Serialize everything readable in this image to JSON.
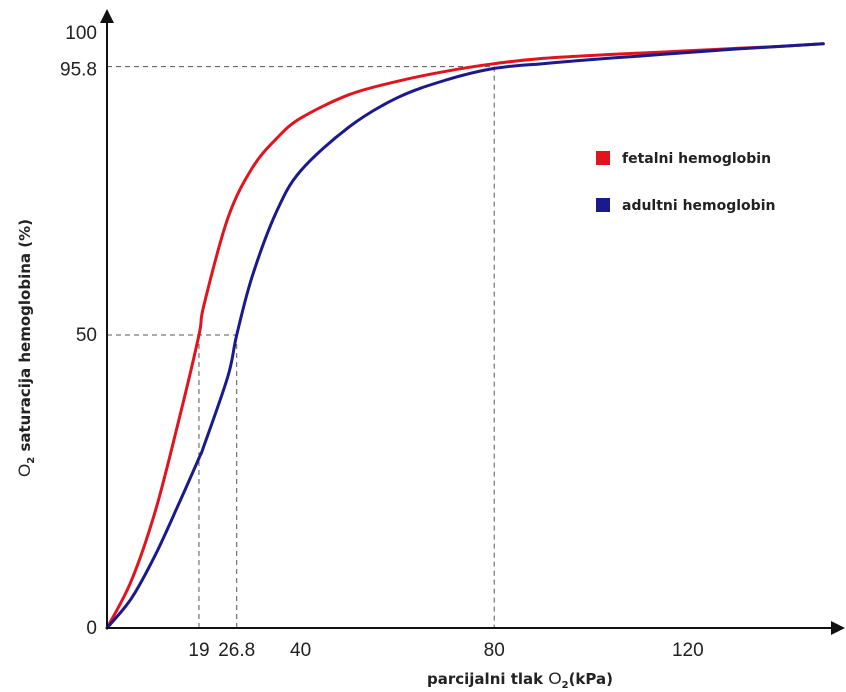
{
  "chart_data": {
    "type": "line",
    "xlabel": {
      "prefix": "parcijalni tlak ",
      "main": "O",
      "sub": "2",
      "suffix": "(kPa)"
    },
    "ylabel": {
      "main": "O",
      "sub": "2",
      "suffix": " saturacija hemoglobina (%)"
    },
    "xlim": [
      0,
      150
    ],
    "ylim": [
      0,
      100
    ],
    "x_tick_labels": [
      "19",
      "26.8",
      "40",
      "80",
      "120"
    ],
    "y_tick_labels": [
      "0",
      "50",
      "95.8",
      "100"
    ],
    "series": [
      {
        "name": "fetalni hemoglobin",
        "color": "#e0141e",
        "x": [
          0,
          5,
          10,
          15,
          19,
          20,
          25,
          30,
          35,
          40,
          50,
          60,
          70,
          80,
          90,
          100,
          110,
          120,
          130,
          140,
          148
        ],
        "y": [
          0,
          8,
          20,
          36,
          50,
          55,
          70,
          78.5,
          83.5,
          87,
          91,
          93.3,
          95,
          96.3,
          97.2,
          97.7,
          98.1,
          98.5,
          98.9,
          99.3,
          99.7
        ]
      },
      {
        "name": "adultni hemoglobin",
        "color": "#1a1a8c",
        "x": [
          0,
          5,
          10,
          15,
          19,
          20,
          25,
          26.8,
          30,
          35,
          40,
          50,
          60,
          70,
          80,
          90,
          100,
          110,
          120,
          130,
          140,
          148
        ],
        "y": [
          0,
          5,
          12.5,
          21.5,
          29,
          31,
          43,
          50,
          60,
          71,
          78,
          85.5,
          90.5,
          93.5,
          95.5,
          96.3,
          97,
          97.6,
          98.2,
          98.8,
          99.3,
          99.7
        ]
      }
    ],
    "reference_lines": [
      {
        "x": 19,
        "y": 50
      },
      {
        "x": 26.8,
        "y": 50
      },
      {
        "x": 80,
        "y": 95.8
      }
    ],
    "legend": {
      "position": "right-middle"
    },
    "grid": false
  }
}
